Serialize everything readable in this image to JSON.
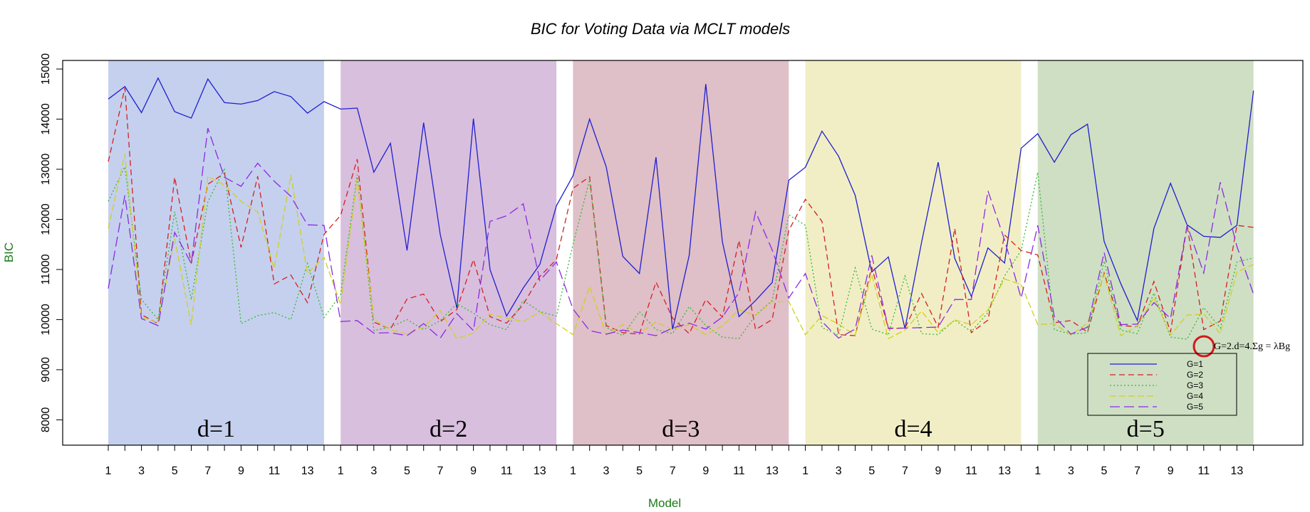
{
  "chart_data": {
    "type": "line",
    "title": "BIC for Voting Data via MCLT models",
    "xlabel": "Model",
    "ylabel": "BIC",
    "ylim": [
      7750,
      15100
    ],
    "yticks": [
      8000,
      9000,
      10000,
      11000,
      12000,
      13000,
      14000,
      15000
    ],
    "xtick_labels": [
      "1",
      "3",
      "5",
      "7",
      "9",
      "11",
      "13"
    ],
    "groups": [
      {
        "label": "d=1",
        "color": "#c5d0ee"
      },
      {
        "label": "d=2",
        "color": "#d8bfdd"
      },
      {
        "label": "d=3",
        "color": "#dfbfc8"
      },
      {
        "label": "d=4",
        "color": "#f1eec6"
      },
      {
        "label": "d=5",
        "color": "#cfdfc4"
      }
    ],
    "series": [
      {
        "name": "G=1",
        "color": "#1f1fcf",
        "dash": "",
        "values": [
          14400,
          14650,
          14130,
          14820,
          14150,
          14020,
          14800,
          14330,
          14300,
          14370,
          14550,
          14450,
          14120,
          14350,
          14200,
          14220,
          12940,
          13520,
          11380,
          13930,
          11700,
          10230,
          14010,
          11000,
          10070,
          10630,
          11100,
          12270,
          12870,
          14000,
          13050,
          11260,
          10920,
          13240,
          9800,
          11280,
          14700,
          11550,
          10060,
          10380,
          10740,
          12780,
          13040,
          13760,
          13260,
          12480,
          10950,
          11250,
          9820,
          11540,
          13140,
          11220,
          10460,
          11430,
          11130,
          13420,
          13710,
          13140,
          13690,
          13900,
          11560,
          10720,
          9980,
          11820,
          12720,
          11890,
          11660,
          11640,
          11880,
          14570
        ]
      },
      {
        "name": "G=2",
        "color": "#d42020",
        "dash": "8,5",
        "values": [
          13150,
          14620,
          10100,
          9920,
          12840,
          11120,
          12700,
          12920,
          11440,
          12860,
          10710,
          10890,
          10340,
          11700,
          12080,
          13200,
          9950,
          9810,
          10410,
          10510,
          9960,
          10200,
          11200,
          10060,
          9930,
          10300,
          10860,
          11200,
          12620,
          12850,
          9880,
          9740,
          9710,
          10750,
          10030,
          9720,
          10400,
          10050,
          11580,
          9800,
          10000,
          11780,
          12400,
          11960,
          9700,
          9680,
          11050,
          9820,
          9830,
          10520,
          9850,
          11820,
          9740,
          9990,
          11690,
          11380,
          11290,
          9940,
          9980,
          9750,
          10930,
          9880,
          9860,
          10760,
          9750,
          11880,
          9800,
          9970,
          11880,
          11840
        ]
      },
      {
        "name": "G=3",
        "color": "#33bb33",
        "dash": "2,3",
        "values": [
          12360,
          13050,
          10400,
          10000,
          12150,
          10400,
          12350,
          13020,
          9920,
          10080,
          10140,
          10000,
          11120,
          10040,
          10500,
          12890,
          9780,
          9850,
          10000,
          9800,
          9980,
          10320,
          10130,
          9900,
          9800,
          10380,
          10160,
          10070,
          11500,
          12790,
          9840,
          9680,
          10160,
          9800,
          9720,
          10260,
          9880,
          9650,
          9620,
          10090,
          10380,
          12090,
          11880,
          9840,
          9690,
          11030,
          9810,
          9700,
          10870,
          9720,
          9700,
          9990,
          9760,
          10140,
          10870,
          11380,
          12940,
          9800,
          9710,
          9740,
          11170,
          9790,
          9720,
          10530,
          9650,
          9610,
          10240,
          9830,
          11150,
          11230
        ]
      },
      {
        "name": "G=4",
        "color": "#d0d020",
        "dash": "9,4",
        "values": [
          11820,
          13300,
          10050,
          9940,
          11620,
          9900,
          12860,
          12680,
          12360,
          12150,
          11020,
          12890,
          10920,
          11240,
          10300,
          12800,
          10000,
          9800,
          9710,
          9850,
          10180,
          9620,
          9730,
          10110,
          10030,
          9960,
          10150,
          9920,
          9700,
          10660,
          9700,
          9900,
          9730,
          9950,
          9800,
          9900,
          9700,
          9870,
          10200,
          10080,
          10360,
          10360,
          9700,
          10080,
          9910,
          9690,
          10900,
          9620,
          9790,
          10170,
          9740,
          9990,
          9900,
          10190,
          10810,
          10700,
          9900,
          9920,
          9690,
          9930,
          10900,
          9680,
          9870,
          10440,
          9690,
          10090,
          10110,
          9720,
          10950,
          11100
        ]
      },
      {
        "name": "G=5",
        "color": "#8a2be2",
        "dash": "14,6",
        "values": [
          10620,
          12480,
          10020,
          9880,
          11740,
          11120,
          13820,
          12840,
          12660,
          13120,
          12760,
          12460,
          11890,
          11880,
          9960,
          9980,
          9730,
          9740,
          9680,
          9920,
          9630,
          10120,
          9780,
          11960,
          12070,
          12310,
          10780,
          11150,
          10210,
          9780,
          9710,
          9790,
          9740,
          9680,
          9830,
          9930,
          9810,
          10050,
          10540,
          12150,
          11390,
          10430,
          10920,
          9960,
          9630,
          9810,
          11280,
          9830,
          9830,
          9840,
          9850,
          10400,
          10400,
          12570,
          11590,
          10430,
          11880,
          10060,
          9710,
          9850,
          11340,
          9900,
          9910,
          10340,
          10020,
          11880,
          10930,
          12740,
          11460,
          10510
        ]
      }
    ],
    "annotation": "G=2.d=4.Σg = λBg",
    "legend_position": "bottom-right"
  }
}
